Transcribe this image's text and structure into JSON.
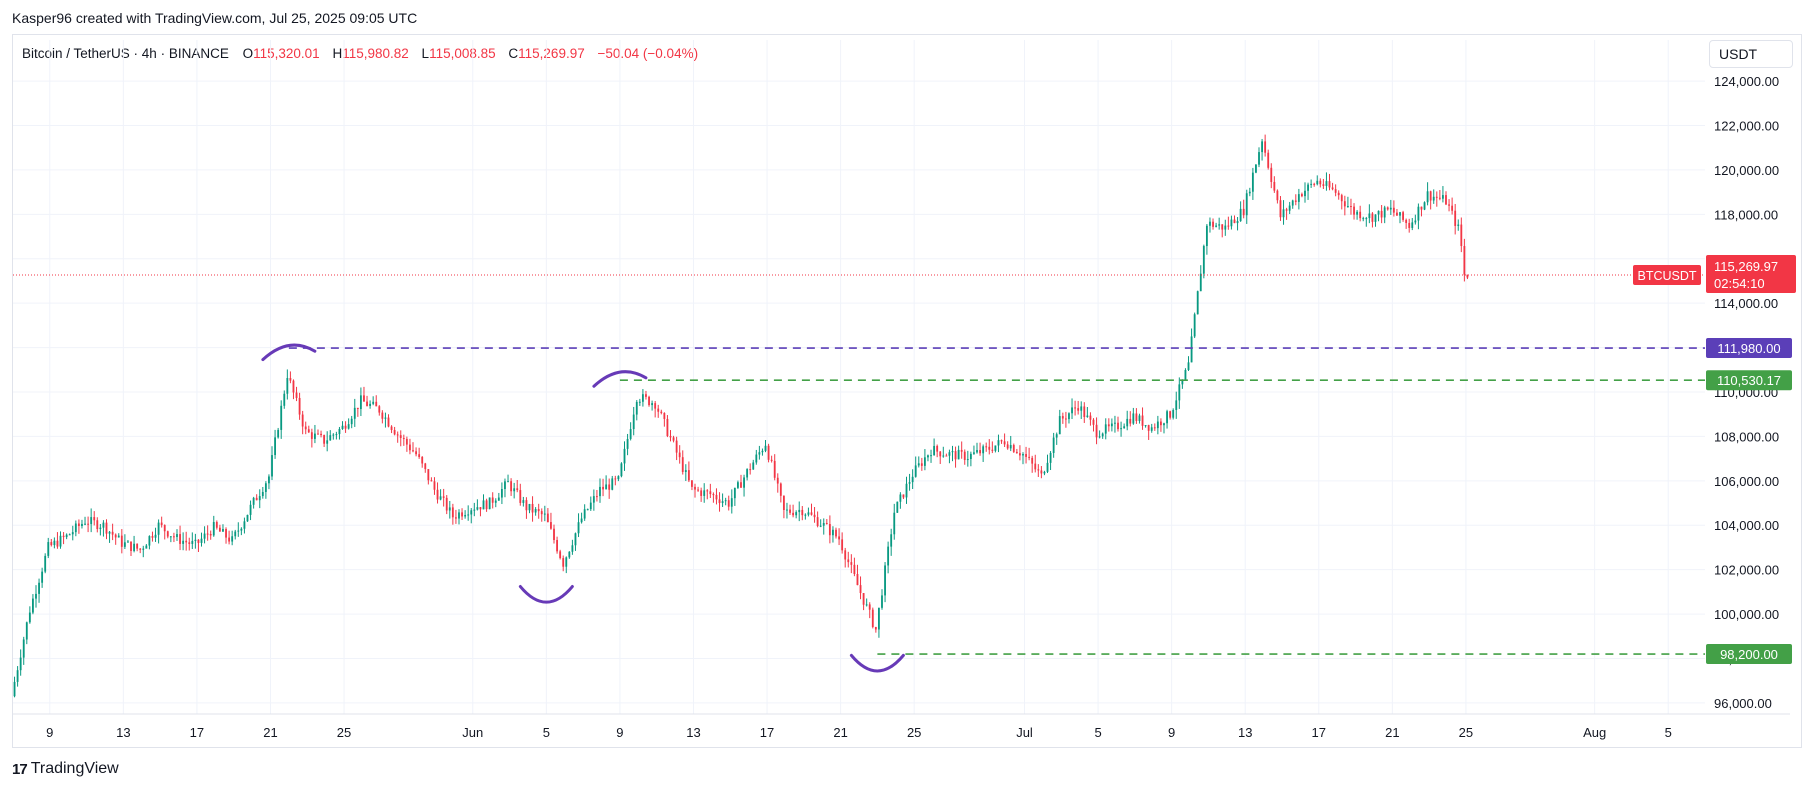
{
  "header": {
    "credit": "Kasper96 created with TradingView.com, Jul 25, 2025 09:05 UTC"
  },
  "legend": {
    "symbol": "Bitcoin / TetherUS · 4h · BINANCE",
    "o_label": "O",
    "o_value": "115,320.01",
    "h_label": "H",
    "h_value": "115,980.82",
    "l_label": "L",
    "l_value": "115,008.85",
    "c_label": "C",
    "c_value": "115,269.97",
    "change": "−50.04 (−0.04%)"
  },
  "price_scale": {
    "unit": "USDT"
  },
  "footer": {
    "logo_mark": "17",
    "logo_text": "TradingView"
  },
  "colors": {
    "up": "#089981",
    "down": "#f23645",
    "resistance": "#5b3fb8",
    "support": "#43a047",
    "annotation": "#673ab7"
  },
  "chart_data": {
    "type": "candlestick",
    "interval": "4h",
    "y_axis": {
      "min": 95500,
      "max": 124500,
      "ticks": [
        96000,
        98000,
        100000,
        102000,
        104000,
        106000,
        108000,
        110000,
        112000,
        114000,
        116000,
        118000,
        120000,
        122000,
        124000
      ],
      "tick_labels": [
        "96,000.00",
        "98,000.00",
        "100,000.00",
        "102,000.00",
        "104,000.00",
        "106,000.00",
        "108,000.00",
        "110,000.00",
        "112,000.00",
        "114,000.00",
        "116,000.00",
        "118,000.00",
        "120,000.00",
        "122,000.00",
        "124,000.00"
      ]
    },
    "x_axis": {
      "start": "2025-05-07",
      "end": "2025-08-07",
      "ticks": [
        "2025-05-09",
        "2025-05-13",
        "2025-05-17",
        "2025-05-21",
        "2025-05-25",
        "2025-06-01",
        "2025-06-05",
        "2025-06-09",
        "2025-06-13",
        "2025-06-17",
        "2025-06-21",
        "2025-06-25",
        "2025-07-01",
        "2025-07-05",
        "2025-07-09",
        "2025-07-13",
        "2025-07-17",
        "2025-07-21",
        "2025-07-25",
        "2025-08-01",
        "2025-08-05"
      ],
      "tick_labels": [
        "9",
        "13",
        "17",
        "21",
        "25",
        "Jun",
        "5",
        "9",
        "13",
        "17",
        "21",
        "25",
        "Jul",
        "5",
        "9",
        "13",
        "17",
        "21",
        "25",
        "Aug",
        "5"
      ]
    },
    "grid": true,
    "price_path": [
      [
        "2025-05-07",
        96300
      ],
      [
        "2025-05-08",
        100200
      ],
      [
        "2025-05-09",
        103000
      ],
      [
        "2025-05-10",
        103500
      ],
      [
        "2025-05-11",
        104200
      ],
      [
        "2025-05-12",
        104000
      ],
      [
        "2025-05-13",
        103200
      ],
      [
        "2025-05-14",
        102900
      ],
      [
        "2025-05-15",
        104000
      ],
      [
        "2025-05-16",
        103400
      ],
      [
        "2025-05-17",
        103100
      ],
      [
        "2025-05-18",
        103900
      ],
      [
        "2025-05-19",
        103300
      ],
      [
        "2025-05-20",
        104800
      ],
      [
        "2025-05-21",
        106200
      ],
      [
        "2025-05-22",
        110800
      ],
      [
        "2025-05-23",
        108200
      ],
      [
        "2025-05-24",
        107800
      ],
      [
        "2025-05-25",
        108400
      ],
      [
        "2025-05-26",
        109600
      ],
      [
        "2025-05-27",
        109200
      ],
      [
        "2025-05-28",
        108100
      ],
      [
        "2025-05-29",
        107200
      ],
      [
        "2025-05-30",
        105600
      ],
      [
        "2025-05-31",
        104400
      ],
      [
        "2025-06-01",
        104800
      ],
      [
        "2025-06-02",
        105000
      ],
      [
        "2025-06-03",
        105900
      ],
      [
        "2025-06-04",
        104800
      ],
      [
        "2025-06-05",
        104400
      ],
      [
        "2025-06-06",
        102300
      ],
      [
        "2025-06-07",
        104300
      ],
      [
        "2025-06-08",
        105600
      ],
      [
        "2025-06-09",
        106000
      ],
      [
        "2025-06-10",
        109800
      ],
      [
        "2025-06-11",
        109500
      ],
      [
        "2025-06-12",
        107600
      ],
      [
        "2025-06-13",
        105600
      ],
      [
        "2025-06-14",
        105400
      ],
      [
        "2025-06-15",
        105000
      ],
      [
        "2025-06-16",
        106400
      ],
      [
        "2025-06-17",
        107700
      ],
      [
        "2025-06-18",
        104600
      ],
      [
        "2025-06-19",
        104700
      ],
      [
        "2025-06-20",
        104100
      ],
      [
        "2025-06-21",
        103400
      ],
      [
        "2025-06-22",
        101300
      ],
      [
        "2025-06-23",
        99300
      ],
      [
        "2025-06-24",
        104600
      ],
      [
        "2025-06-25",
        106300
      ],
      [
        "2025-06-26",
        107400
      ],
      [
        "2025-06-27",
        107200
      ],
      [
        "2025-06-28",
        107100
      ],
      [
        "2025-06-29",
        107400
      ],
      [
        "2025-06-30",
        107800
      ],
      [
        "2025-07-01",
        107200
      ],
      [
        "2025-07-02",
        106200
      ],
      [
        "2025-07-03",
        108700
      ],
      [
        "2025-07-04",
        109400
      ],
      [
        "2025-07-05",
        108200
      ],
      [
        "2025-07-06",
        108400
      ],
      [
        "2025-07-07",
        108900
      ],
      [
        "2025-07-08",
        108400
      ],
      [
        "2025-07-09",
        109000
      ],
      [
        "2025-07-10",
        111200
      ],
      [
        "2025-07-11",
        117600
      ],
      [
        "2025-07-12",
        117400
      ],
      [
        "2025-07-13",
        118200
      ],
      [
        "2025-07-14",
        121400
      ],
      [
        "2025-07-15",
        117900
      ],
      [
        "2025-07-16",
        118900
      ],
      [
        "2025-07-17",
        119500
      ],
      [
        "2025-07-18",
        119000
      ],
      [
        "2025-07-19",
        118100
      ],
      [
        "2025-07-20",
        117900
      ],
      [
        "2025-07-21",
        118200
      ],
      [
        "2025-07-22",
        117500
      ],
      [
        "2025-07-23",
        118900
      ],
      [
        "2025-07-24",
        118600
      ],
      [
        "2025-07-24T18:00",
        117200
      ],
      [
        "2025-07-25",
        115270
      ]
    ],
    "last_price": {
      "value": 115269.97,
      "label": "115,269.97",
      "countdown": "02:54:10",
      "tag": "BTCUSDT"
    },
    "levels": [
      {
        "kind": "resistance",
        "value": 111980,
        "label": "111,980.00",
        "from": "2025-05-22"
      },
      {
        "kind": "support",
        "value": 110530.17,
        "label": "110,530.17",
        "from": "2025-06-09"
      },
      {
        "kind": "support",
        "value": 98200,
        "label": "98,200.00",
        "from": "2025-06-23"
      }
    ],
    "annotations": [
      {
        "shape": "arc-top",
        "date": "2025-05-22",
        "price": 112000
      },
      {
        "shape": "arc-bottom",
        "date": "2025-06-05",
        "price": 100700
      },
      {
        "shape": "arc-top",
        "date": "2025-06-09",
        "price": 110800
      },
      {
        "shape": "arc-bottom",
        "date": "2025-06-23",
        "price": 97600
      }
    ]
  }
}
